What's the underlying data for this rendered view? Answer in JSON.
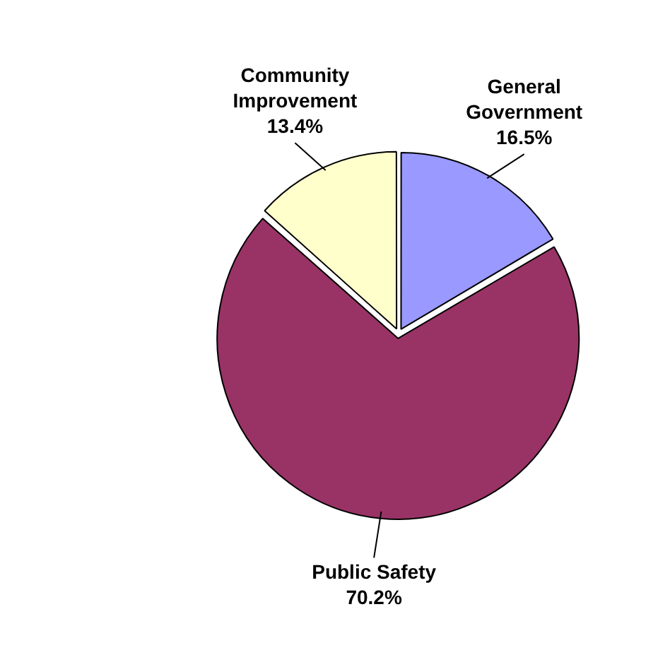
{
  "chart_data": {
    "type": "pie",
    "categories": [
      "General Government",
      "Public Safety",
      "Community Improvement"
    ],
    "values": [
      16.5,
      70.2,
      13.4
    ],
    "colors": [
      "#9999ff",
      "#993366",
      "#ffffcc"
    ],
    "value_labels": [
      "16.5%",
      "70.2%",
      "13.4%"
    ],
    "legend": false
  }
}
